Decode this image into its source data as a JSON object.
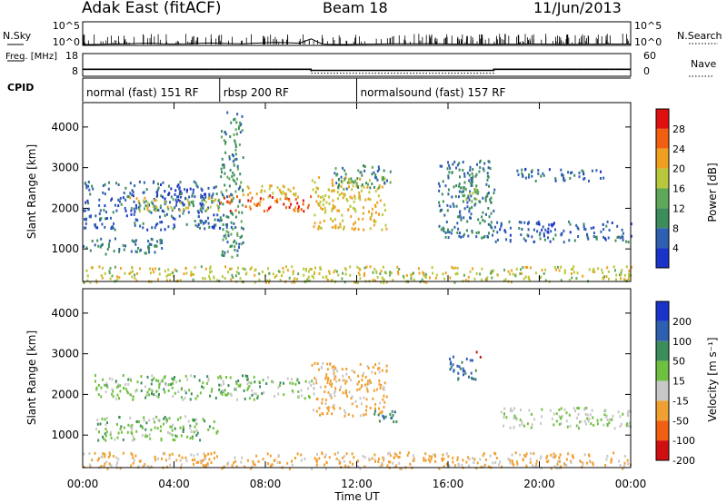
{
  "header": {
    "station": "Adak East (fitACF)",
    "beam": "Beam 18",
    "date": "11/Jun/2013"
  },
  "chart_data": [
    {
      "type": "line",
      "title": "N.Sky",
      "ylabel": "N.Sky",
      "ylabel_right": "N.Search",
      "yticks": [
        "10^5",
        "10^0"
      ],
      "yticks_right": [
        "10^5",
        "10^0"
      ],
      "x_hours": [
        0,
        0.5,
        1,
        1.5,
        2,
        2.5,
        3,
        3.5,
        4,
        4.5,
        5,
        5.5,
        6,
        6.5,
        7,
        7.5,
        8,
        8.5,
        9,
        9.5,
        10,
        10.5,
        11,
        11.5,
        12,
        12.5,
        13,
        13.5,
        14,
        14.5,
        15,
        15.5,
        16,
        16.5,
        17,
        17.5,
        18,
        18.5,
        19,
        19.5,
        20,
        20.5,
        21,
        21.5,
        22,
        22.5,
        23,
        23.5,
        24
      ],
      "values": [
        1,
        1,
        1.2,
        1.3,
        1.5,
        1.8,
        2,
        1.5,
        1.3,
        1.4,
        1.8,
        2.2,
        2,
        1.6,
        1.4,
        2,
        2.5,
        3,
        2.5,
        2,
        20,
        1.2,
        1,
        1,
        1.1,
        1.2,
        1.3,
        1.4,
        1.4,
        1.5,
        1.5,
        1.4,
        1.3,
        1.2,
        1.2,
        1.1,
        1.1,
        1.2,
        1.2,
        1.3,
        1.3,
        1.2,
        1.1,
        1.1,
        1.2,
        1.2,
        1.3,
        1.3,
        1.3
      ]
    },
    {
      "type": "line",
      "ylabel": "Freq. [MHz]",
      "ylabel_right": "Nave",
      "yticks": [
        "18",
        "8"
      ],
      "yticks_right": [
        "60",
        "0"
      ],
      "series": [
        {
          "name": "Freq.",
          "x_hours": [
            0,
            10,
            10,
            18,
            18,
            24
          ],
          "values": [
            10.8,
            10.8,
            10.3,
            10.3,
            10.8,
            10.8
          ]
        },
        {
          "name": "Nave",
          "x_hours": [
            0,
            10,
            10,
            18,
            18,
            24
          ],
          "values": [
            16,
            16,
            6,
            6,
            16,
            16
          ]
        }
      ]
    },
    {
      "type": "table",
      "label": "CPID",
      "segments": [
        {
          "label": "normal (fast) 151 RF",
          "start_hour": 0,
          "end_hour": 6
        },
        {
          "label": "rbsp 200 RF",
          "start_hour": 6,
          "end_hour": 12
        },
        {
          "label": "normalsound (fast) 157 RF",
          "start_hour": 12,
          "end_hour": 24
        }
      ]
    },
    {
      "type": "heatmap",
      "quantity": "Power",
      "ylabel": "Slant Range [km]",
      "xlabel": "",
      "ylim": [
        200,
        4600
      ],
      "yticks": [
        1000,
        2000,
        3000,
        4000
      ],
      "colorbar_label": "Power [dB]",
      "colorbar_ticks": [
        "28",
        "24",
        "20",
        "16",
        "12",
        "8",
        "4"
      ],
      "scatter_bands": [
        {
          "t0": 0,
          "t1": 6,
          "r0": 1500,
          "r1": 2700,
          "value": 6
        },
        {
          "t0": 2,
          "t1": 6,
          "r0": 1950,
          "r1": 2300,
          "value": 18
        },
        {
          "t0": 0,
          "t1": 3.5,
          "r0": 900,
          "r1": 1300,
          "value": 8
        },
        {
          "t0": 6,
          "t1": 10,
          "r0": 1950,
          "r1": 2350,
          "value": 26
        },
        {
          "t0": 6.8,
          "t1": 9.5,
          "r0": 2300,
          "r1": 2600,
          "value": 20
        },
        {
          "t0": 6,
          "t1": 7,
          "r0": 800,
          "r1": 4400,
          "value": 10
        },
        {
          "t0": 10,
          "t1": 13.3,
          "r0": 1500,
          "r1": 2800,
          "value": 20
        },
        {
          "t0": 11,
          "t1": 13.5,
          "r0": 2500,
          "r1": 3100,
          "value": 10
        },
        {
          "t0": 15.5,
          "t1": 18,
          "r0": 1300,
          "r1": 3200,
          "value": 8
        },
        {
          "t0": 16.5,
          "t1": 17.5,
          "r0": 2200,
          "r1": 2700,
          "value": 14
        },
        {
          "t0": 18,
          "t1": 24,
          "r0": 1200,
          "r1": 1700,
          "value": 6
        },
        {
          "t0": 19,
          "t1": 23,
          "r0": 2700,
          "r1": 3000,
          "value": 6
        },
        {
          "t0": 0,
          "t1": 24,
          "r0": 200,
          "r1": 600,
          "value": 18
        }
      ]
    },
    {
      "type": "heatmap",
      "quantity": "Velocity",
      "ylabel": "Slant Range [km]",
      "xlabel": "Time UT",
      "xticks": [
        "00:00",
        "04:00",
        "08:00",
        "12:00",
        "16:00",
        "20:00",
        "00:00"
      ],
      "ylim": [
        200,
        4600
      ],
      "yticks": [
        1000,
        2000,
        3000,
        4000
      ],
      "colorbar_label": "Velocity [m s⁻¹]",
      "colorbar_ticks": [
        "200",
        "100",
        "50",
        "15",
        "-15",
        "-50",
        "-100",
        "-200"
      ],
      "scatter_bands": [
        {
          "t0": 0.5,
          "t1": 10,
          "r0": 1900,
          "r1": 2500,
          "value": 0
        },
        {
          "t0": 0.5,
          "t1": 6,
          "r0": 900,
          "r1": 1500,
          "value": 0
        },
        {
          "t0": 10,
          "t1": 13.3,
          "r0": 1500,
          "r1": 2800,
          "value": -60
        },
        {
          "t0": 12.5,
          "t1": 13.8,
          "r0": 1350,
          "r1": 1650,
          "value": 50
        },
        {
          "t0": 16,
          "t1": 17.3,
          "r0": 2400,
          "r1": 3000,
          "value": 50
        },
        {
          "t0": 18.3,
          "t1": 24,
          "r0": 1200,
          "r1": 1700,
          "value": -20
        },
        {
          "t0": 17.2,
          "t1": 17.4,
          "r0": 2900,
          "r1": 3200,
          "value": -220
        },
        {
          "t0": 0,
          "t1": 24,
          "r0": 200,
          "r1": 600,
          "value": -60
        }
      ]
    }
  ]
}
